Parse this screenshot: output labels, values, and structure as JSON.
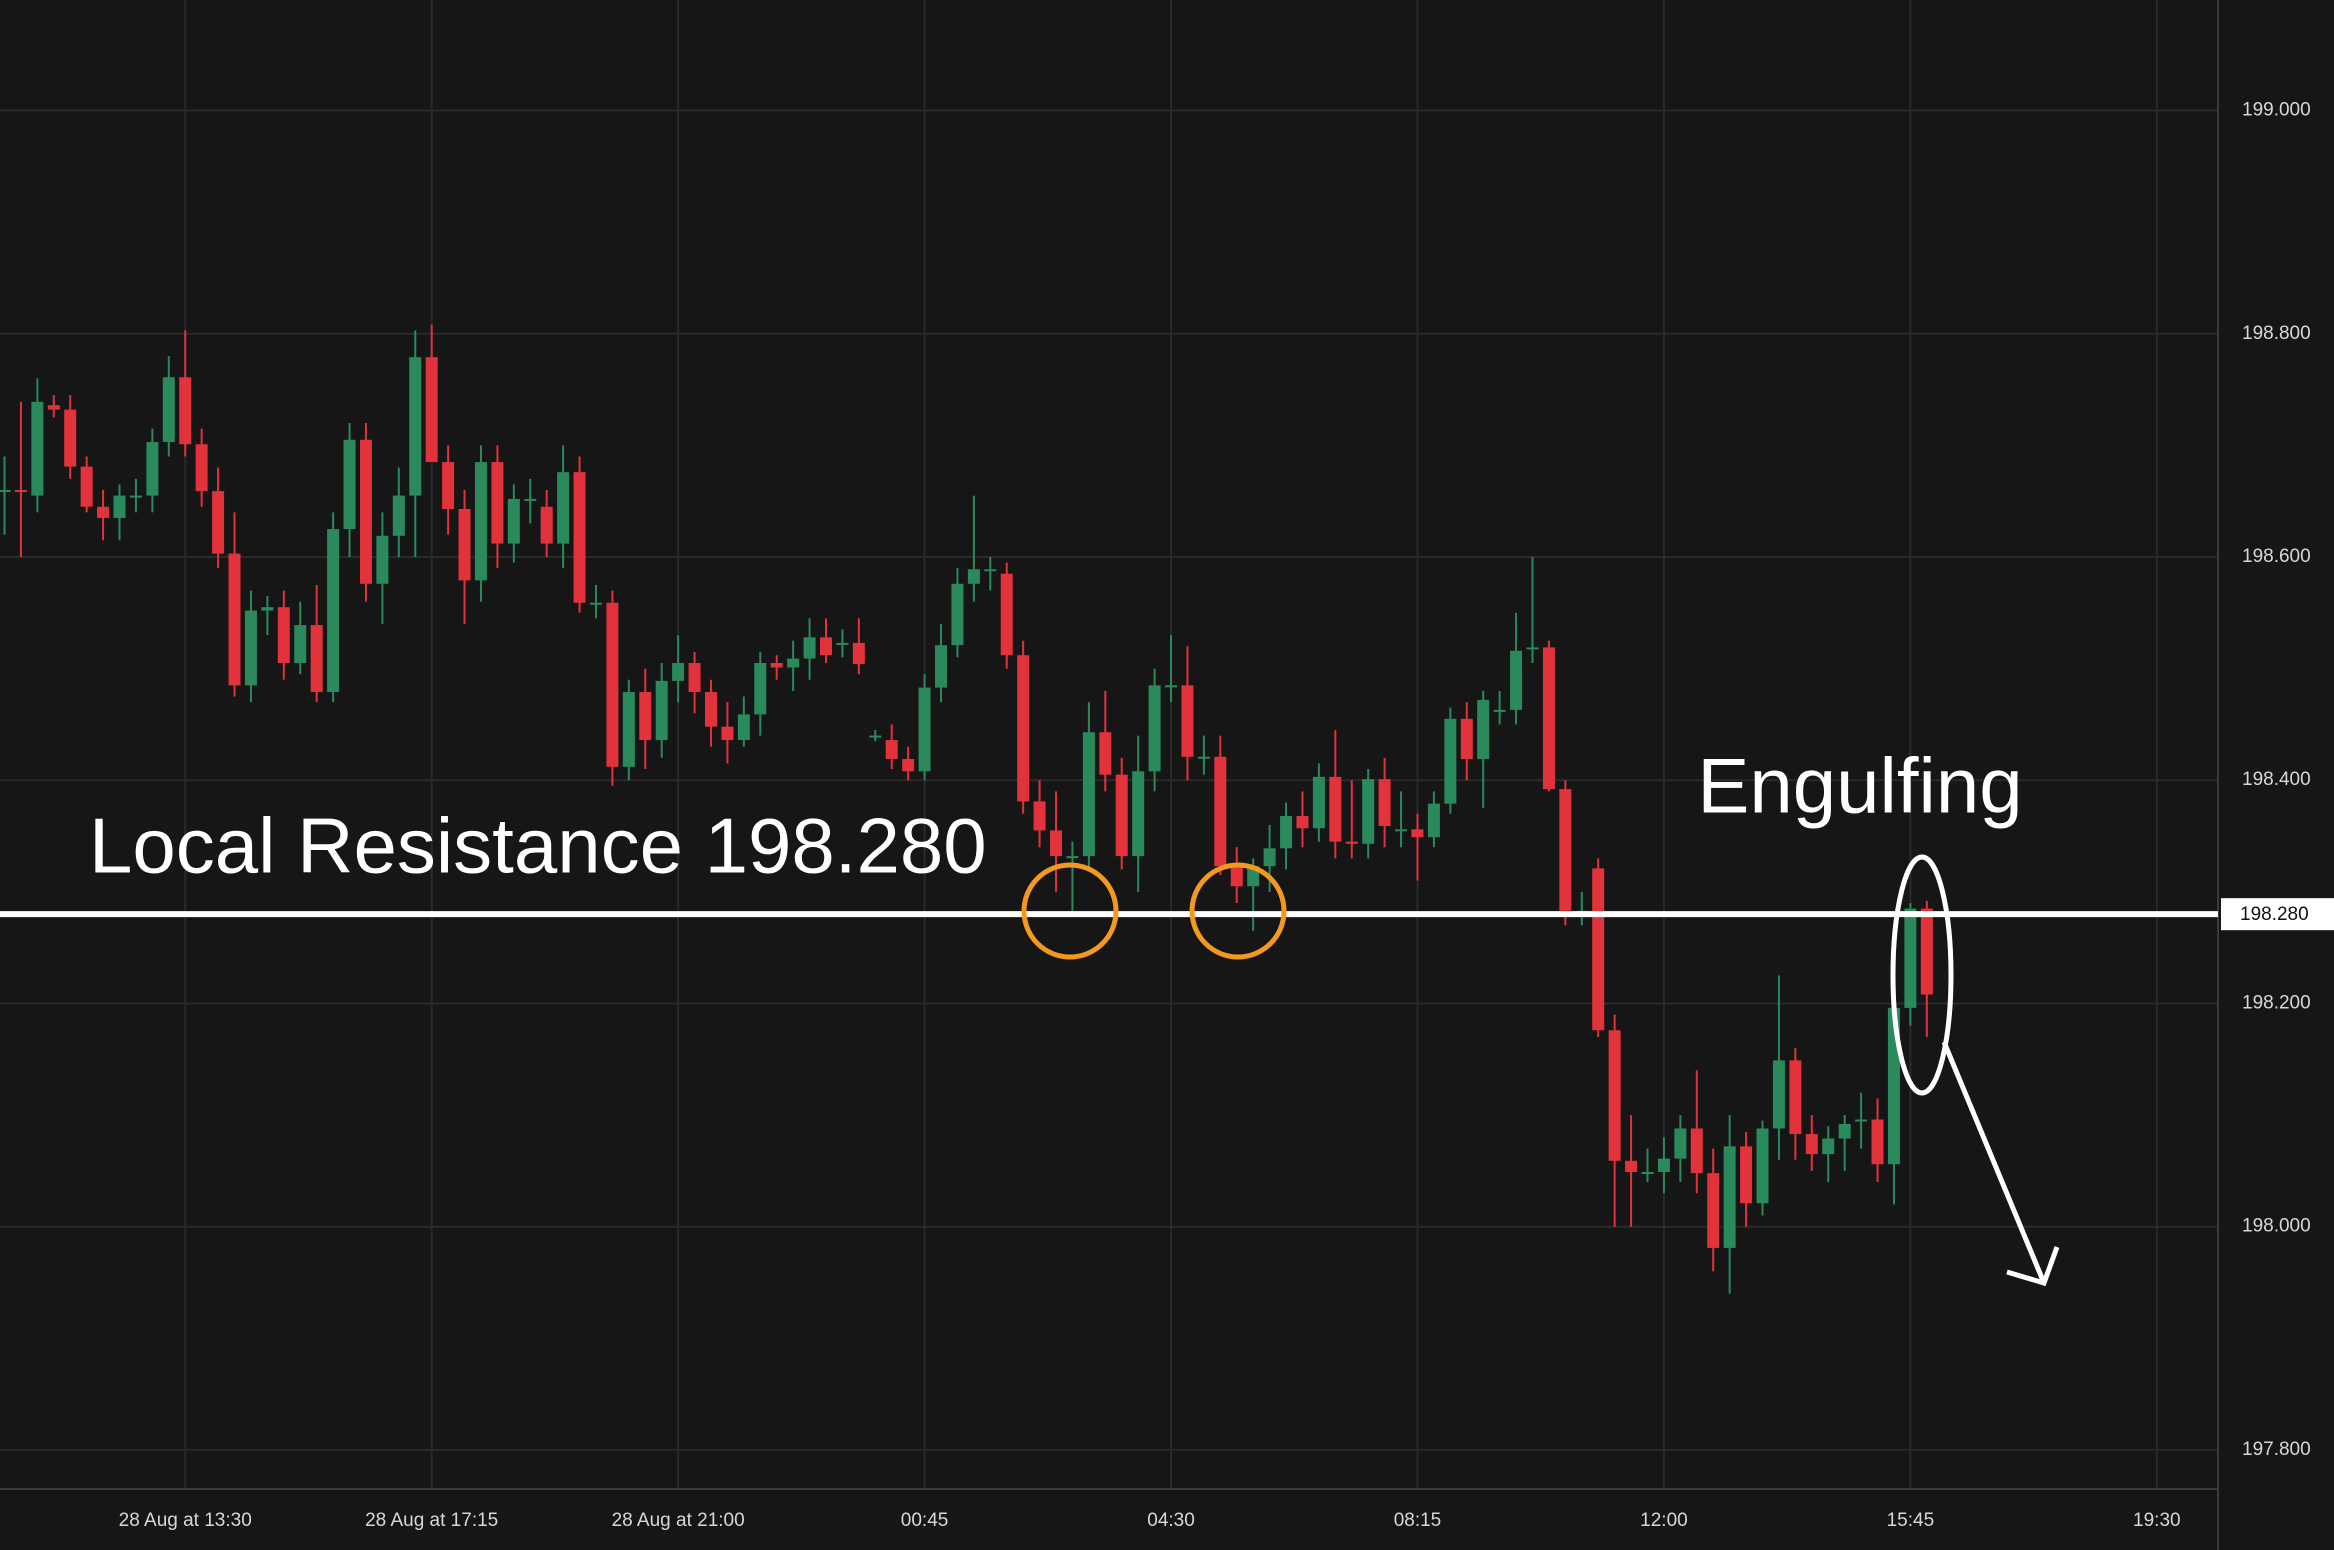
{
  "chart_data": {
    "type": "candlestick",
    "categories": [
      null,
      null,
      null,
      null,
      null,
      null,
      null,
      null,
      null,
      null,
      null,
      "28 Aug at 13:30",
      null,
      null,
      null,
      null,
      null,
      null,
      null,
      null,
      null,
      null,
      null,
      null,
      null,
      null,
      "28 Aug at 17:15",
      null,
      null,
      null,
      null,
      null,
      null,
      null,
      null,
      null,
      null,
      null,
      null,
      null,
      null,
      "28 Aug at 21:00",
      null,
      null,
      null,
      null,
      null,
      null,
      null,
      null,
      null,
      null,
      null,
      null,
      null,
      null,
      "00:45",
      null,
      null,
      null,
      null,
      null,
      null,
      null,
      null,
      null,
      null,
      null,
      null,
      null,
      null,
      "04:30",
      null,
      null,
      null,
      null,
      null,
      null,
      null,
      null,
      null,
      null,
      null,
      null,
      null,
      null,
      "08:15",
      null,
      null,
      null,
      null,
      null,
      null,
      null,
      null,
      null,
      null,
      null,
      null,
      null,
      null,
      "12:00",
      null,
      null,
      null,
      null,
      null,
      null,
      null,
      null,
      null,
      null,
      null,
      null,
      null,
      null,
      "15:45",
      null,
      null,
      null,
      null,
      null,
      null,
      null,
      null,
      null,
      null,
      null,
      null,
      null,
      null,
      "19:30",
      null,
      null,
      null
    ],
    "open": [
      198.659,
      198.66,
      198.655,
      198.736,
      198.732,
      198.681,
      198.645,
      198.635,
      198.655,
      198.655,
      198.703,
      198.761,
      198.701,
      198.659,
      198.603,
      198.485,
      198.552,
      198.555,
      198.505,
      198.539,
      198.479,
      198.625,
      198.705,
      198.576,
      198.619,
      198.655,
      198.779,
      198.685,
      198.643,
      198.579,
      198.685,
      198.612,
      198.652,
      198.645,
      198.612,
      198.676,
      198.559,
      198.559,
      198.412,
      198.479,
      198.436,
      198.489,
      198.505,
      198.479,
      198.448,
      198.436,
      198.459,
      198.505,
      198.501,
      198.509,
      198.528,
      198.523,
      198.523,
      198.44,
      198.436,
      198.419,
      198.408,
      198.483,
      198.521,
      198.576,
      198.589,
      198.585,
      198.512,
      198.381,
      198.355,
      198.332,
      198.332,
      198.443,
      198.405,
      198.332,
      198.408,
      198.485,
      198.485,
      198.421,
      198.421,
      198.323,
      198.305,
      198.323,
      198.339,
      198.368,
      198.357,
      198.403,
      198.345,
      198.343,
      198.401,
      198.356,
      198.356,
      198.349,
      198.379,
      198.455,
      198.419,
      198.463,
      198.463,
      198.519,
      198.519,
      198.392,
      198.283,
      198.321,
      198.176,
      198.059,
      198.049,
      198.049,
      198.061,
      198.088,
      198.048,
      197.981,
      198.072,
      198.021,
      198.088,
      198.149,
      198.083,
      198.065,
      198.079,
      198.096,
      198.096,
      198.056,
      198.196,
      198.285,
      null,
      null,
      null,
      null,
      null,
      null,
      null,
      null,
      null,
      null,
      null,
      null,
      null,
      null,
      null,
      null,
      null
    ],
    "high": [
      198.69,
      198.739,
      198.76,
      198.745,
      198.745,
      198.69,
      198.66,
      198.665,
      198.67,
      198.715,
      198.78,
      198.803,
      198.715,
      198.68,
      198.64,
      198.57,
      198.565,
      198.57,
      198.56,
      198.575,
      198.64,
      198.72,
      198.72,
      198.64,
      198.68,
      198.803,
      198.808,
      198.7,
      198.66,
      198.7,
      198.7,
      198.665,
      198.67,
      198.66,
      198.7,
      198.69,
      198.575,
      198.57,
      198.49,
      198.5,
      198.505,
      198.53,
      198.515,
      198.49,
      198.47,
      198.475,
      198.515,
      198.512,
      198.525,
      198.545,
      198.545,
      198.535,
      198.545,
      198.445,
      198.45,
      198.43,
      198.495,
      198.54,
      198.59,
      198.655,
      198.6,
      198.595,
      198.525,
      198.4,
      198.39,
      198.345,
      198.47,
      198.48,
      198.42,
      198.44,
      198.5,
      198.53,
      198.52,
      198.44,
      198.44,
      198.34,
      198.33,
      198.36,
      198.38,
      198.39,
      198.415,
      198.445,
      198.4,
      198.41,
      198.42,
      198.39,
      198.37,
      198.39,
      198.465,
      198.47,
      198.48,
      198.48,
      198.55,
      198.6,
      198.525,
      198.4,
      198.3,
      198.33,
      198.19,
      198.1,
      198.07,
      198.08,
      198.1,
      198.14,
      198.07,
      198.1,
      198.085,
      198.095,
      198.225,
      198.16,
      198.1,
      198.09,
      198.1,
      198.12,
      198.115,
      198.21,
      198.29,
      198.292,
      null,
      null,
      null,
      null,
      null,
      null,
      null,
      null,
      null,
      null,
      null,
      null,
      null,
      null,
      null,
      null,
      null
    ],
    "low": [
      198.62,
      198.6,
      198.64,
      198.725,
      198.67,
      198.64,
      198.615,
      198.615,
      198.64,
      198.64,
      198.69,
      198.69,
      198.645,
      198.59,
      198.475,
      198.47,
      198.53,
      198.49,
      198.495,
      198.47,
      198.47,
      198.6,
      198.56,
      198.54,
      198.6,
      198.6,
      198.69,
      198.62,
      198.54,
      198.56,
      198.59,
      198.595,
      198.63,
      198.6,
      198.59,
      198.55,
      198.545,
      198.395,
      198.4,
      198.41,
      198.42,
      198.47,
      198.46,
      198.43,
      198.415,
      198.43,
      198.44,
      198.49,
      198.48,
      198.49,
      198.505,
      198.51,
      198.495,
      198.435,
      198.41,
      198.4,
      198.4,
      198.47,
      198.51,
      198.56,
      198.57,
      198.5,
      198.37,
      198.34,
      198.3,
      198.283,
      198.32,
      198.39,
      198.32,
      198.3,
      198.39,
      198.47,
      198.4,
      198.405,
      198.315,
      198.29,
      198.265,
      198.3,
      198.32,
      198.34,
      198.345,
      198.33,
      198.33,
      198.33,
      198.34,
      198.34,
      198.31,
      198.34,
      198.37,
      198.4,
      198.375,
      198.45,
      198.45,
      198.505,
      198.39,
      198.27,
      198.27,
      198.17,
      198.0,
      198.0,
      198.04,
      198.03,
      198.04,
      198.03,
      197.96,
      197.94,
      198.0,
      198.01,
      198.06,
      198.06,
      198.05,
      198.04,
      198.05,
      198.07,
      198.04,
      198.02,
      198.18,
      198.17,
      null,
      null,
      null,
      null,
      null,
      null,
      null,
      null,
      null,
      null,
      null,
      null,
      null,
      null,
      null,
      null,
      null
    ],
    "close": [
      198.66,
      198.659,
      198.739,
      198.732,
      198.681,
      198.645,
      198.635,
      198.655,
      198.655,
      198.703,
      198.761,
      198.701,
      198.659,
      198.603,
      198.485,
      198.552,
      198.555,
      198.505,
      198.539,
      198.479,
      198.625,
      198.705,
      198.576,
      198.619,
      198.655,
      198.779,
      198.685,
      198.643,
      198.579,
      198.685,
      198.612,
      198.652,
      198.652,
      198.612,
      198.676,
      198.559,
      198.559,
      198.412,
      198.479,
      198.436,
      198.489,
      198.505,
      198.479,
      198.448,
      198.436,
      198.459,
      198.505,
      198.501,
      198.509,
      198.528,
      198.512,
      198.523,
      198.504,
      198.44,
      198.419,
      198.408,
      198.483,
      198.521,
      198.576,
      198.589,
      198.589,
      198.512,
      198.381,
      198.355,
      198.332,
      198.332,
      198.443,
      198.405,
      198.332,
      198.408,
      198.485,
      198.485,
      198.421,
      198.421,
      198.323,
      198.305,
      198.323,
      198.339,
      198.368,
      198.357,
      198.403,
      198.345,
      198.343,
      198.401,
      198.359,
      198.356,
      198.349,
      198.379,
      198.455,
      198.419,
      198.472,
      198.463,
      198.516,
      198.519,
      198.392,
      198.283,
      198.283,
      198.176,
      198.059,
      198.049,
      198.049,
      198.061,
      198.088,
      198.048,
      197.981,
      198.072,
      198.021,
      198.088,
      198.149,
      198.083,
      198.065,
      198.079,
      198.092,
      198.096,
      198.056,
      198.196,
      198.285,
      198.208,
      null,
      null,
      null,
      null,
      null,
      null,
      null,
      null,
      null,
      null,
      null,
      null,
      null,
      null,
      null,
      null,
      null
    ],
    "up_color": "#2a8a5c",
    "down_color": "#e2323c",
    "ylim": [
      197.765,
      199.099
    ],
    "yticks": [
      {
        "value": 197.8,
        "label": "197.800"
      },
      {
        "value": 198,
        "label": "198.000"
      },
      {
        "value": 198.2,
        "label": "198.200"
      },
      {
        "value": 198.4,
        "label": "198.400"
      },
      {
        "value": 198.6,
        "label": "198.600"
      },
      {
        "value": 198.8,
        "label": "198.800"
      },
      {
        "value": 199,
        "label": "199.000"
      }
    ],
    "grid": true,
    "resistance": {
      "value": 198.28,
      "label": "198.280"
    },
    "annotations": [
      "Local Resistance 198.280",
      "Engulfing"
    ]
  }
}
